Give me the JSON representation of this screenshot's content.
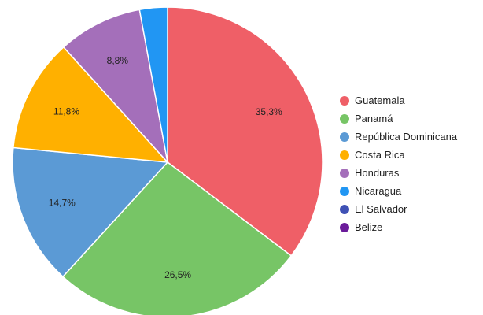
{
  "chart_data": {
    "type": "pie",
    "title": "",
    "legend_position": "right",
    "start_angle_deg": 0,
    "direction": "clockwise",
    "slices": [
      {
        "name": "Guatemala",
        "value": 35.3,
        "label": "35,3%",
        "color": "#ef5f67"
      },
      {
        "name": "Panamá",
        "value": 26.5,
        "label": "26,5%",
        "color": "#77c566"
      },
      {
        "name": "República Dominicana",
        "value": 14.7,
        "label": "14,7%",
        "color": "#5b9ad5"
      },
      {
        "name": "Costa Rica",
        "value": 11.8,
        "label": "11,8%",
        "color": "#ffb000"
      },
      {
        "name": "Honduras",
        "value": 8.8,
        "label": "8,8%",
        "color": "#a46fba"
      },
      {
        "name": "Nicaragua",
        "value": 2.9,
        "label": "",
        "color": "#2196f3"
      },
      {
        "name": "El Salvador",
        "value": 0,
        "label": "",
        "color": "#3f51b5"
      },
      {
        "name": "Belize",
        "value": 0,
        "label": "",
        "color": "#6a1b9a"
      }
    ]
  }
}
